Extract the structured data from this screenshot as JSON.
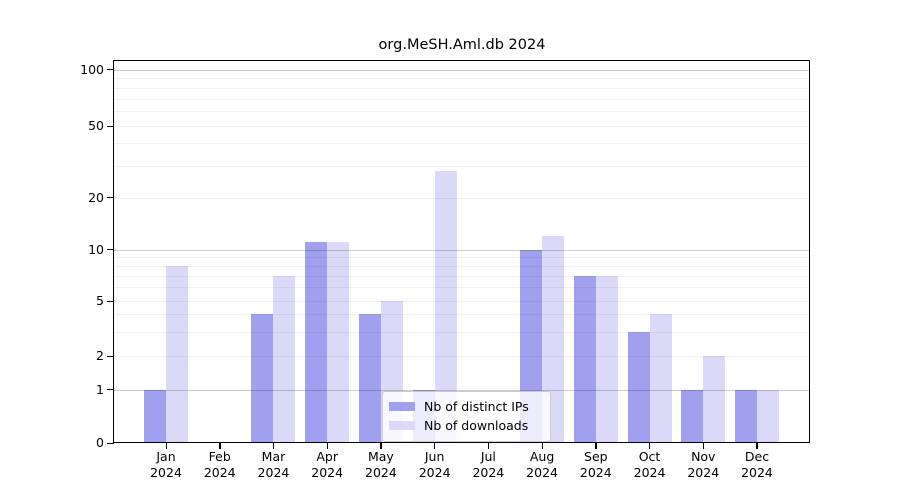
{
  "chart_data": {
    "type": "bar",
    "title": "org.MeSH.Aml.db 2024",
    "year": "2024",
    "months": [
      "Jan",
      "Feb",
      "Mar",
      "Apr",
      "May",
      "Jun",
      "Jul",
      "Aug",
      "Sep",
      "Oct",
      "Nov",
      "Dec"
    ],
    "x_tick_labels": [
      "Jan 2024",
      "Feb 2024",
      "Mar 2024",
      "Apr 2024",
      "May 2024",
      "Jun 2024",
      "Jul 2024",
      "Aug 2024",
      "Sep 2024",
      "Oct 2024",
      "Nov 2024",
      "Dec 2024"
    ],
    "series": [
      {
        "name": "Nb of distinct IPs",
        "color": "#a0a0ee",
        "values": [
          1,
          0,
          4,
          11,
          4,
          1,
          0,
          10,
          7,
          3,
          1,
          1
        ]
      },
      {
        "name": "Nb of downloads",
        "color": "#dadaf8",
        "values": [
          8,
          0,
          7,
          11,
          5,
          28,
          0,
          12,
          7,
          4,
          2,
          1
        ]
      }
    ],
    "y_axis": {
      "scale": "log-like",
      "tick_values": [
        0,
        1,
        2,
        5,
        10,
        20,
        50,
        100
      ],
      "tick_labels": [
        "0",
        "1",
        "2",
        "5",
        "10",
        "20",
        "50",
        "100"
      ],
      "range": [
        0,
        100
      ],
      "minor_grid_values": [
        2,
        3,
        4,
        5,
        6,
        7,
        8,
        9,
        20,
        30,
        40,
        50,
        60,
        70,
        80,
        90
      ],
      "major_grid_values": [
        1,
        10,
        100
      ]
    },
    "legend": {
      "position": "bottom-center",
      "entries": [
        "Nb of distinct IPs",
        "Nb of downloads"
      ]
    },
    "grid": "horizontal"
  },
  "colors": {
    "background": "#ffffff",
    "bar_distinct_ips": "#a0a0ee",
    "bar_downloads": "#dadaf8",
    "major_grid": "#c9c9c9",
    "minor_grid": "#efefef",
    "axis": "#000000",
    "legend_border": "#cccccc"
  }
}
